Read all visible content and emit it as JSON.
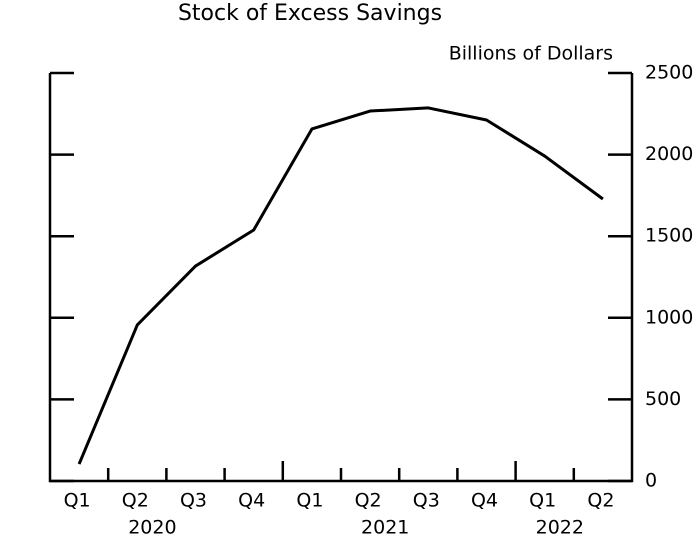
{
  "chart_data": {
    "type": "line",
    "title": "Stock of Excess Savings",
    "y_axis_label": "Billions of Dollars",
    "categories": [
      "Q1",
      "Q2",
      "Q3",
      "Q4",
      "Q1",
      "Q2",
      "Q3",
      "Q4",
      "Q1",
      "Q2"
    ],
    "year_groups": [
      {
        "label": "2020",
        "start": 0,
        "end": 3
      },
      {
        "label": "2021",
        "start": 4,
        "end": 7
      },
      {
        "label": "2022",
        "start": 8,
        "end": 9
      }
    ],
    "series": [
      {
        "name": "Stock of Excess Savings",
        "color": "#000000",
        "values": [
          104,
          956,
          1317,
          1538,
          2157,
          2267,
          2286,
          2212,
          1991,
          1728
        ]
      }
    ],
    "ylim": [
      0,
      2500
    ],
    "yticks": [
      0,
      500,
      1000,
      1500,
      2000,
      2500
    ]
  }
}
